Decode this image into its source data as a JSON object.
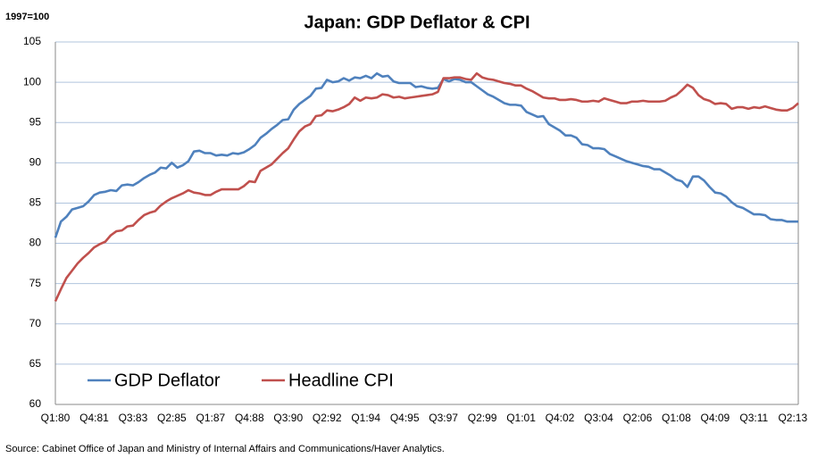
{
  "chart_data": {
    "type": "line",
    "title": "Japan: GDP Deflator & CPI",
    "subtitle": "1997=100",
    "source": "Source:  Cabinet Office of Japan and Ministry of Internal Affairs and Communications/Haver Analytics.",
    "categories": [
      "Q1:80",
      null,
      null,
      null,
      null,
      null,
      null,
      "Q4:81",
      null,
      null,
      null,
      null,
      null,
      null,
      "Q3:83",
      null,
      null,
      null,
      null,
      null,
      null,
      "Q2:85",
      null,
      null,
      null,
      null,
      null,
      null,
      "Q1:87",
      null,
      null,
      null,
      null,
      null,
      null,
      "Q4:88",
      null,
      null,
      null,
      null,
      null,
      null,
      "Q3:90",
      null,
      null,
      null,
      null,
      null,
      null,
      "Q2:92",
      null,
      null,
      null,
      null,
      null,
      null,
      "Q1:94",
      null,
      null,
      null,
      null,
      null,
      null,
      "Q4:95",
      null,
      null,
      null,
      null,
      null,
      null,
      "Q3:97",
      null,
      null,
      null,
      null,
      null,
      null,
      "Q2:99",
      null,
      null,
      null,
      null,
      null,
      null,
      "Q1:01",
      null,
      null,
      null,
      null,
      null,
      null,
      "Q4:02",
      null,
      null,
      null,
      null,
      null,
      null,
      "Q3:04",
      null,
      null,
      null,
      null,
      null,
      null,
      "Q2:06",
      null,
      null,
      null,
      null,
      null,
      null,
      "Q1:08",
      null,
      null,
      null,
      null,
      null,
      null,
      "Q4:09",
      null,
      null,
      null,
      null,
      null,
      null,
      "Q3:11",
      null,
      null,
      null,
      null,
      null,
      null,
      "Q2:13",
      null
    ],
    "series": [
      {
        "name": "GDP Deflator",
        "color": "#4f81bd",
        "values": [
          80.7,
          82.7,
          83.3,
          84.2,
          84.4,
          84.6,
          85.2,
          86.0,
          86.3,
          86.4,
          86.6,
          86.5,
          87.2,
          87.3,
          87.2,
          87.6,
          88.1,
          88.5,
          88.8,
          89.4,
          89.3,
          90.0,
          89.4,
          89.7,
          90.2,
          91.4,
          91.5,
          91.2,
          91.2,
          90.9,
          91.0,
          90.9,
          91.2,
          91.1,
          91.3,
          91.7,
          92.2,
          93.1,
          93.6,
          94.2,
          94.7,
          95.3,
          95.4,
          96.6,
          97.3,
          97.8,
          98.3,
          99.2,
          99.3,
          100.3,
          100.0,
          100.1,
          100.5,
          100.2,
          100.6,
          100.5,
          100.8,
          100.5,
          101.1,
          100.7,
          100.8,
          100.1,
          99.9,
          99.9,
          99.9,
          99.4,
          99.5,
          99.3,
          99.2,
          99.3,
          100.4,
          100.1,
          100.4,
          100.3,
          100.0,
          100.0,
          99.5,
          99.0,
          98.5,
          98.2,
          97.8,
          97.4,
          97.2,
          97.2,
          97.1,
          96.3,
          96.0,
          95.7,
          95.8,
          94.8,
          94.4,
          94.0,
          93.4,
          93.4,
          93.1,
          92.3,
          92.2,
          91.8,
          91.8,
          91.7,
          91.1,
          90.8,
          90.5,
          90.2,
          90.0,
          89.8,
          89.6,
          89.5,
          89.2,
          89.2,
          88.8,
          88.4,
          87.9,
          87.7,
          87.0,
          88.3,
          88.3,
          87.8,
          87.0,
          86.3,
          86.2,
          85.8,
          85.1,
          84.6,
          84.4,
          84.0,
          83.6,
          83.6,
          83.5,
          83.0,
          82.9,
          82.9,
          82.7,
          82.7,
          82.7
        ]
      },
      {
        "name": "Headline CPI",
        "color": "#c0504d",
        "values": [
          72.8,
          74.3,
          75.7,
          76.6,
          77.5,
          78.2,
          78.8,
          79.5,
          79.9,
          80.2,
          81.0,
          81.5,
          81.6,
          82.1,
          82.2,
          82.9,
          83.5,
          83.8,
          84.0,
          84.7,
          85.2,
          85.6,
          85.9,
          86.2,
          86.6,
          86.3,
          86.2,
          86.0,
          86.0,
          86.4,
          86.7,
          86.7,
          86.7,
          86.7,
          87.1,
          87.7,
          87.6,
          89.0,
          89.4,
          89.8,
          90.5,
          91.2,
          91.8,
          92.9,
          93.9,
          94.5,
          94.8,
          95.8,
          95.9,
          96.5,
          96.4,
          96.6,
          96.9,
          97.3,
          98.1,
          97.7,
          98.1,
          98.0,
          98.1,
          98.5,
          98.4,
          98.1,
          98.2,
          98.0,
          98.1,
          98.2,
          98.3,
          98.4,
          98.5,
          98.8,
          100.5,
          100.5,
          100.6,
          100.6,
          100.4,
          100.3,
          101.1,
          100.6,
          100.4,
          100.3,
          100.1,
          99.9,
          99.8,
          99.6,
          99.6,
          99.2,
          98.9,
          98.5,
          98.1,
          98.0,
          98.0,
          97.8,
          97.8,
          97.9,
          97.8,
          97.6,
          97.6,
          97.7,
          97.6,
          98.0,
          97.8,
          97.6,
          97.4,
          97.4,
          97.6,
          97.6,
          97.7,
          97.6,
          97.6,
          97.6,
          97.7,
          98.1,
          98.4,
          99.0,
          99.7,
          99.3,
          98.4,
          97.9,
          97.7,
          97.3,
          97.4,
          97.3,
          96.7,
          96.9,
          96.9,
          96.7,
          96.9,
          96.8,
          97.0,
          96.8,
          96.6,
          96.5,
          96.5,
          96.8,
          97.4
        ]
      }
    ],
    "ylim": [
      60,
      105
    ],
    "yticks": [
      60,
      65,
      70,
      75,
      80,
      85,
      90,
      95,
      100,
      105
    ],
    "grid": true,
    "legend": "lower left"
  }
}
